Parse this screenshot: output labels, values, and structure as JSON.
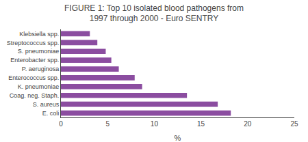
{
  "chart_data": {
    "type": "bar",
    "orientation": "horizontal",
    "title": "FIGURE 1: Top 10 isolated blood pathogens from\n1997 through 2000 - Euro SENTRY",
    "x_label": "%",
    "categories": [
      "E. coli",
      "S. aureus",
      "Coag. neg. Staph.",
      "K. pneumoniae",
      "Enterococcus spp.",
      "P. aeruginosa",
      "Enterobacter spp.",
      "S. pneumoniae",
      "Streptococcus spp.",
      "Klebsiella spp."
    ],
    "values": [
      18.2,
      16.8,
      13.5,
      8.7,
      7.9,
      6.2,
      5.4,
      4.8,
      3.9,
      3.1
    ],
    "color": "#8b4da0",
    "xlim": [
      0,
      25
    ],
    "xticks": [
      0,
      5,
      10,
      15,
      20,
      25
    ],
    "grid": false
  }
}
